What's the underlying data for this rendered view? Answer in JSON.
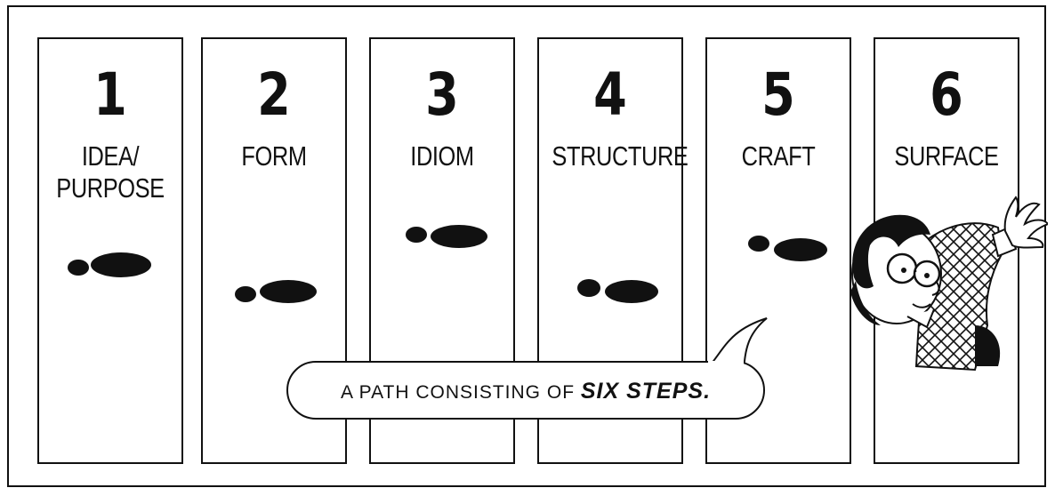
{
  "steps": [
    {
      "number": "1",
      "label": "IDEA/\nPURPOSE"
    },
    {
      "number": "2",
      "label": "FORM"
    },
    {
      "number": "3",
      "label": "IDIOM"
    },
    {
      "number": "4",
      "label": "STRUCTURE"
    },
    {
      "number": "5",
      "label": "CRAFT"
    },
    {
      "number": "6",
      "label": "SURFACE"
    }
  ],
  "caption": {
    "lead": "A PATH CONSISTING OF",
    "emphasis": "SIX STEPS."
  },
  "colors": {
    "ink": "#111111",
    "paper": "#ffffff"
  }
}
